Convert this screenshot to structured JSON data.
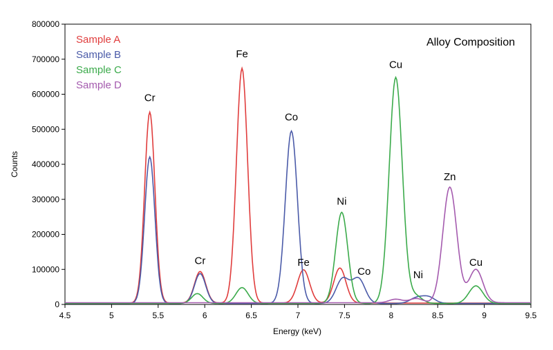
{
  "chart_data": {
    "type": "line",
    "title": "Alloy Composition",
    "xlabel": "Energy (keV)",
    "ylabel": "Counts",
    "xlim": [
      4.5,
      9.5
    ],
    "ylim": [
      0,
      800000
    ],
    "x_ticks": [
      4.5,
      5,
      5.5,
      6,
      6.5,
      7,
      7.5,
      8,
      8.5,
      9,
      9.5
    ],
    "y_ticks": [
      0,
      100000,
      200000,
      300000,
      400000,
      500000,
      600000,
      700000,
      800000
    ],
    "x_tick_labels": [
      "4.5",
      "5",
      "5.5",
      "6",
      "6.5",
      "7",
      "7.5",
      "8",
      "8.5",
      "9",
      "9.5"
    ],
    "y_tick_labels": [
      "0",
      "100000",
      "200000",
      "300000",
      "400000",
      "500000",
      "600000",
      "700000",
      "800000"
    ],
    "grid": false,
    "legend_position": "top-left",
    "series": [
      {
        "name": "Sample A",
        "color": "#e03c3c",
        "peaks": [
          {
            "x": 5.41,
            "height": 545000,
            "width": 0.055
          },
          {
            "x": 5.95,
            "height": 90000,
            "width": 0.06
          },
          {
            "x": 6.4,
            "height": 670000,
            "width": 0.06
          },
          {
            "x": 7.06,
            "height": 95000,
            "width": 0.065
          },
          {
            "x": 7.45,
            "height": 100000,
            "width": 0.065
          }
        ],
        "baseline": 4000
      },
      {
        "name": "Sample B",
        "color": "#4a5aa8",
        "peaks": [
          {
            "x": 5.41,
            "height": 418000,
            "width": 0.055
          },
          {
            "x": 5.95,
            "height": 85000,
            "width": 0.06
          },
          {
            "x": 6.93,
            "height": 492000,
            "width": 0.065
          },
          {
            "x": 7.48,
            "height": 70000,
            "width": 0.07
          },
          {
            "x": 7.65,
            "height": 70000,
            "width": 0.07
          },
          {
            "x": 8.27,
            "height": 15000,
            "width": 0.07
          },
          {
            "x": 8.4,
            "height": 18000,
            "width": 0.07
          }
        ],
        "baseline": 3000
      },
      {
        "name": "Sample C",
        "color": "#3aaa4a",
        "peaks": [
          {
            "x": 5.92,
            "height": 28000,
            "width": 0.06
          },
          {
            "x": 6.4,
            "height": 45000,
            "width": 0.065
          },
          {
            "x": 7.47,
            "height": 260000,
            "width": 0.065
          },
          {
            "x": 8.05,
            "height": 645000,
            "width": 0.07
          },
          {
            "x": 8.26,
            "height": 22000,
            "width": 0.07
          },
          {
            "x": 8.91,
            "height": 50000,
            "width": 0.075
          }
        ],
        "baseline": 3000
      },
      {
        "name": "Sample D",
        "color": "#a45aae",
        "peaks": [
          {
            "x": 8.05,
            "height": 10000,
            "width": 0.07
          },
          {
            "x": 8.27,
            "height": 12000,
            "width": 0.07
          },
          {
            "x": 8.63,
            "height": 330000,
            "width": 0.075
          },
          {
            "x": 8.91,
            "height": 95000,
            "width": 0.075
          }
        ],
        "baseline": 5000
      }
    ],
    "annotations": [
      {
        "text": "Cr",
        "x": 5.41,
        "y": 580000
      },
      {
        "text": "Cr",
        "x": 5.95,
        "y": 115000
      },
      {
        "text": "Fe",
        "x": 6.4,
        "y": 705000
      },
      {
        "text": "Co",
        "x": 6.93,
        "y": 525000
      },
      {
        "text": "Fe",
        "x": 7.06,
        "y": 110000
      },
      {
        "text": "Ni",
        "x": 7.47,
        "y": 285000
      },
      {
        "text": "Co",
        "x": 7.71,
        "y": 85000
      },
      {
        "text": "Cu",
        "x": 8.05,
        "y": 675000
      },
      {
        "text": "Ni",
        "x": 8.29,
        "y": 75000
      },
      {
        "text": "Zn",
        "x": 8.63,
        "y": 355000
      },
      {
        "text": "Cu",
        "x": 8.91,
        "y": 110000
      }
    ]
  }
}
